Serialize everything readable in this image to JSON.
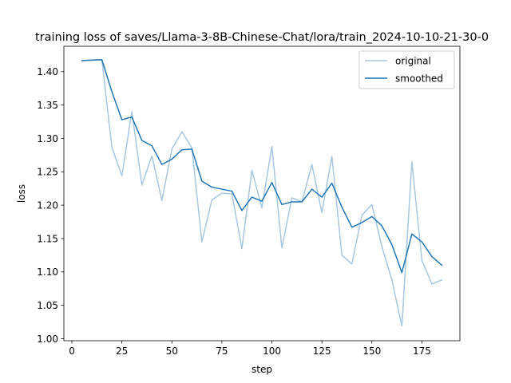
{
  "chart_data": {
    "type": "line",
    "title": "training loss of saves/Llama-3-8B-Chinese-Chat/lora/train_2024-10-10-21-30-0",
    "xlabel": "step",
    "ylabel": "loss",
    "xlim": [
      -4,
      194
    ],
    "ylim": [
      0.997,
      1.438
    ],
    "xticks": [
      0,
      25,
      50,
      75,
      100,
      125,
      150,
      175
    ],
    "yticks": [
      1.0,
      1.05,
      1.1,
      1.15,
      1.2,
      1.25,
      1.3,
      1.35,
      1.4
    ],
    "yticklabels": [
      "1.00",
      "1.05",
      "1.10",
      "1.15",
      "1.20",
      "1.25",
      "1.30",
      "1.35",
      "1.40"
    ],
    "grid": false,
    "legend_position": "top-right",
    "x": [
      5,
      10,
      15,
      20,
      25,
      30,
      35,
      40,
      45,
      50,
      55,
      60,
      65,
      70,
      75,
      80,
      85,
      90,
      95,
      100,
      105,
      110,
      115,
      120,
      125,
      130,
      135,
      140,
      145,
      150,
      155,
      160,
      165,
      170,
      175,
      180,
      185
    ],
    "series": [
      {
        "name": "original",
        "color": "#a6c8e0",
        "values": [
          1.4165,
          1.4175,
          1.418,
          1.287,
          1.244,
          1.34,
          1.23,
          1.274,
          1.207,
          1.284,
          1.31,
          1.286,
          1.145,
          1.208,
          1.218,
          1.217,
          1.135,
          1.252,
          1.196,
          1.288,
          1.136,
          1.211,
          1.205,
          1.261,
          1.189,
          1.273,
          1.125,
          1.112,
          1.185,
          1.201,
          1.138,
          1.088,
          1.019,
          1.265,
          1.117,
          1.082,
          1.088
        ]
      },
      {
        "name": "smoothed",
        "color": "#1f77b4",
        "values": [
          1.4165,
          1.4172,
          1.4178,
          1.37,
          1.328,
          1.332,
          1.297,
          1.289,
          1.261,
          1.269,
          1.283,
          1.284,
          1.236,
          1.227,
          1.224,
          1.221,
          1.192,
          1.212,
          1.206,
          1.234,
          1.201,
          1.205,
          1.205,
          1.224,
          1.212,
          1.233,
          1.197,
          1.167,
          1.174,
          1.183,
          1.169,
          1.141,
          1.099,
          1.157,
          1.145,
          1.123,
          1.11
        ]
      }
    ]
  }
}
